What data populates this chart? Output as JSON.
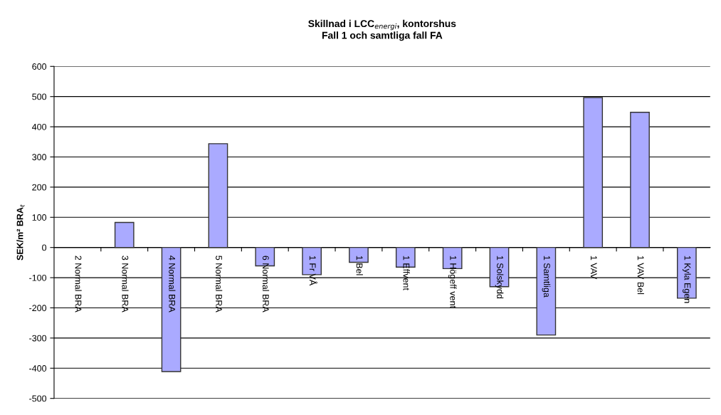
{
  "chart_data": {
    "type": "bar",
    "title": "Skillnad i LCC$_{energi}$, kontorshus\nFall 1 och samtliga fall FA",
    "ylabel": "SEK/m² BRA$_{t}$",
    "categories": [
      "2 Normal BRA",
      "3 Normal BRA",
      "4 Normal BRA",
      "5 Normal BRA",
      "6 Normal BRA",
      "1 Fr VÅ",
      "1 Bel",
      "1 Effvent",
      "1 Högeff vent",
      "1 Solskydd",
      "1 Samtliga",
      "1 VAV",
      "1 VAV Bel",
      "1 Kyla Egen"
    ],
    "values": [
      0,
      83,
      -411,
      344,
      -61,
      -90,
      -49,
      -65,
      -70,
      -130,
      -290,
      497,
      448,
      -168
    ],
    "color": "#aaaaff",
    "ylim": [
      -500,
      600
    ],
    "yticks": [
      -500,
      -400,
      -300,
      -200,
      -100,
      0,
      100,
      200,
      300,
      400,
      500,
      600
    ],
    "grid": "y"
  }
}
